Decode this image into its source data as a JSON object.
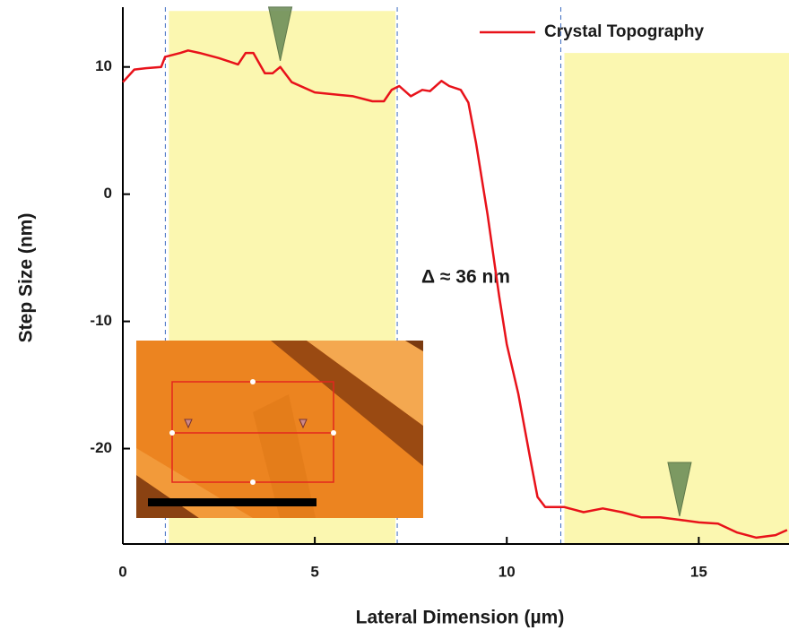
{
  "chart_data": {
    "type": "line",
    "x_label": "Lateral Dimension (µm)",
    "y_label": "Step Size (nm)",
    "annotation": "Δ ≈ 36 nm",
    "x": [
      0,
      0.3,
      0.6,
      1.0,
      1.1,
      1.5,
      1.7,
      2.0,
      2.5,
      3.0,
      3.2,
      3.4,
      3.7,
      3.9,
      4.1,
      4.4,
      5.0,
      6.0,
      6.5,
      6.8,
      7.0,
      7.2,
      7.5,
      7.8,
      8.0,
      8.3,
      8.5,
      8.8,
      9.0,
      9.2,
      9.5,
      9.8,
      10.0,
      10.3,
      10.6,
      10.8,
      11.0,
      11.5,
      12.0,
      12.5,
      13.0,
      13.5,
      14.0,
      14.5,
      15.0,
      15.5,
      16.0,
      16.5,
      17.0,
      17.3
    ],
    "series": [
      {
        "name": "Crystal Topography",
        "color": "#e8121a",
        "values": [
          8.8,
          9.8,
          9.9,
          10.0,
          10.8,
          11.1,
          11.3,
          11.1,
          10.7,
          10.2,
          11.1,
          11.1,
          9.5,
          9.5,
          10.0,
          8.8,
          8.0,
          7.7,
          7.3,
          7.3,
          8.2,
          8.5,
          7.7,
          8.2,
          8.1,
          8.9,
          8.5,
          8.2,
          7.2,
          4.0,
          -1.6,
          -8.0,
          -11.8,
          -15.7,
          -20.6,
          -23.8,
          -24.6,
          -24.6,
          -25.0,
          -24.7,
          -25.0,
          -25.4,
          -25.4,
          -25.6,
          -25.8,
          -25.9,
          -26.6,
          -27.0,
          -26.8,
          -26.4
        ]
      }
    ],
    "xlim": [
      0,
      17.35
    ],
    "ylim": [
      -27.5,
      14.7
    ],
    "xticks": [
      0,
      5,
      10,
      15
    ],
    "yticks": [
      -20,
      -10,
      0,
      10
    ],
    "highlights": [
      {
        "x": [
          1.2,
          7.1
        ],
        "y": [
          -27.5,
          14.4
        ],
        "color": "#fbf7b0"
      },
      {
        "x": [
          11.5,
          17.35
        ],
        "y": [
          -27.5,
          11.1
        ],
        "color": "#fbf7b0"
      }
    ],
    "markers": [
      {
        "x": 4.1,
        "y": 10.2
      },
      {
        "x": 14.5,
        "y": -25.6
      }
    ],
    "legend": "upper right"
  }
}
